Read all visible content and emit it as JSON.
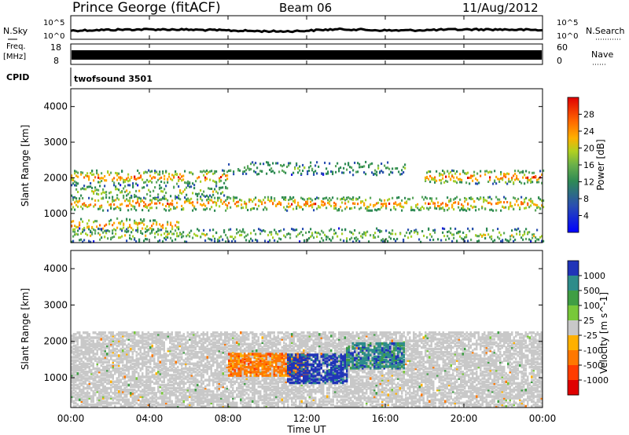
{
  "header": {
    "station": "Prince George (fitACF)",
    "beam": "Beam 06",
    "date": "11/Aug/2012"
  },
  "noise_panel": {
    "left_label": "N.Sky",
    "right_label": "N.Search",
    "ticks": [
      "10^5",
      "10^0"
    ]
  },
  "freq_panel": {
    "left_label_1": "Freq.",
    "left_label_2": "[MHz]",
    "left_ticks": [
      "18",
      "8"
    ],
    "right_label": "Nave",
    "right_ticks": [
      "60",
      "0"
    ]
  },
  "cpid": {
    "label": "CPID",
    "value": "twofsound 3501"
  },
  "colors": {
    "power_scale": [
      "#1818e0",
      "#2a4fb0",
      "#2f8a55",
      "#5aa65e",
      "#a6d02a",
      "#ffa800",
      "#ff6a00",
      "#e00000"
    ],
    "velocity_scale": [
      "#2034b8",
      "#2e8c8a",
      "#3f9e44",
      "#78c83a",
      "#c8c8c8",
      "#ffb000",
      "#ff7800",
      "#ff3c00",
      "#e00000"
    ]
  },
  "chart_data": [
    {
      "type": "heatmap",
      "title": "Power",
      "xlabel": "Time UT",
      "ylabel": "Slant Range [km]",
      "x_ticks": [
        "00:00",
        "04:00",
        "08:00",
        "12:00",
        "16:00",
        "20:00",
        "00:00"
      ],
      "y_ticks": [
        1000,
        2000,
        3000,
        4000
      ],
      "ylim": [
        180,
        4500
      ],
      "colorbar": {
        "label": "Power [dB]",
        "ticks": [
          4,
          8,
          12,
          16,
          20,
          24,
          28
        ],
        "range": [
          0,
          32
        ]
      },
      "echo_bands": [
        {
          "t_start": 0,
          "t_end": 8,
          "range_km": 2050,
          "level": "high"
        },
        {
          "t_start": 0,
          "t_end": 8,
          "range_km": 1650,
          "level": "mid"
        },
        {
          "t_start": 0,
          "t_end": 24,
          "range_km": 1300,
          "level": "high"
        },
        {
          "t_start": 0,
          "t_end": 5.5,
          "range_km": 700,
          "level": "high"
        },
        {
          "t_start": 0,
          "t_end": 24,
          "range_km": 420,
          "level": "mid"
        },
        {
          "t_start": 18,
          "t_end": 24,
          "range_km": 2050,
          "level": "high"
        },
        {
          "t_start": 8,
          "t_end": 17,
          "range_km": 2300,
          "level": "low"
        }
      ]
    },
    {
      "type": "heatmap",
      "title": "Velocity",
      "xlabel": "Time UT",
      "ylabel": "Slant Range [km]",
      "x_ticks": [
        "00:00",
        "04:00",
        "08:00",
        "12:00",
        "16:00",
        "20:00",
        "00:00"
      ],
      "y_ticks": [
        1000,
        2000,
        3000,
        4000
      ],
      "ylim": [
        180,
        4500
      ],
      "colorbar": {
        "label": "Velocity [m s^-1]",
        "ticks": [
          1000,
          500,
          100,
          25,
          -25,
          -100,
          -500,
          -1000
        ]
      },
      "regions": [
        {
          "t_start": 0,
          "t_end": 24,
          "range_min": 250,
          "range_max": 2300,
          "velocity": "ground scatter (|v| < 25)"
        },
        {
          "t_start": 8,
          "t_end": 12,
          "range_min": 1100,
          "range_max": 1700,
          "velocity": "-100 to -500"
        },
        {
          "t_start": 11,
          "t_end": 14,
          "range_min": 900,
          "range_max": 1700,
          "velocity": "500 to 1000"
        },
        {
          "t_start": 14,
          "t_end": 17,
          "range_min": 1300,
          "range_max": 2000,
          "velocity": "100 to 500"
        }
      ]
    }
  ]
}
